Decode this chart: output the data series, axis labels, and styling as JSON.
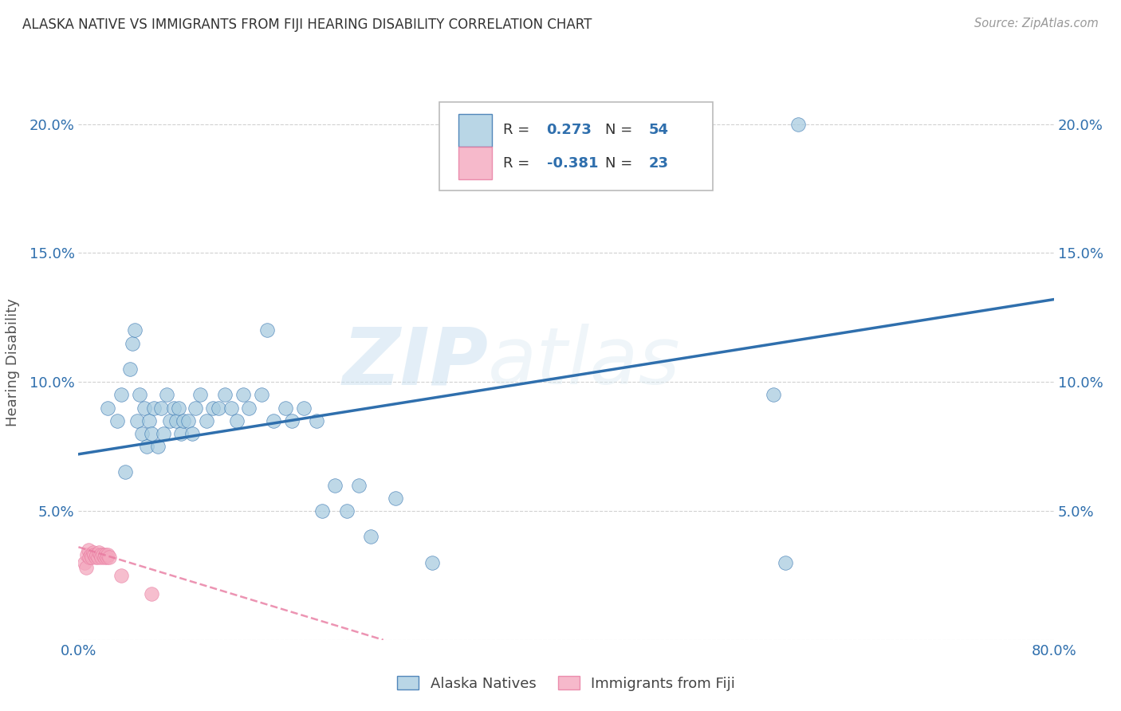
{
  "title": "ALASKA NATIVE VS IMMIGRANTS FROM FIJI HEARING DISABILITY CORRELATION CHART",
  "source": "Source: ZipAtlas.com",
  "ylabel": "Hearing Disability",
  "xmin": 0.0,
  "xmax": 0.8,
  "ymin": 0.0,
  "ymax": 0.215,
  "yticks": [
    0.0,
    0.05,
    0.1,
    0.15,
    0.2
  ],
  "ytick_labels_left": [
    "",
    "5.0%",
    "10.0%",
    "15.0%",
    "20.0%"
  ],
  "ytick_labels_right": [
    "",
    "5.0%",
    "10.0%",
    "15.0%",
    "20.0%"
  ],
  "xticks": [
    0.0,
    0.1,
    0.2,
    0.3,
    0.4,
    0.5,
    0.6,
    0.7,
    0.8
  ],
  "xtick_labels": [
    "0.0%",
    "",
    "",
    "",
    "",
    "",
    "",
    "",
    "80.0%"
  ],
  "legend_blue_label": "Alaska Natives",
  "legend_pink_label": "Immigrants from Fiji",
  "r_blue": "0.273",
  "n_blue": "54",
  "r_pink": "-0.381",
  "n_pink": "23",
  "blue_color": "#a8cce0",
  "pink_color": "#f4a8be",
  "trendline_blue_color": "#2f6fad",
  "trendline_pink_color": "#e87aa0",
  "watermark_zip": "ZIP",
  "watermark_atlas": "atlas",
  "alaska_native_x": [
    0.024,
    0.032,
    0.035,
    0.038,
    0.042,
    0.044,
    0.046,
    0.048,
    0.05,
    0.052,
    0.054,
    0.056,
    0.058,
    0.06,
    0.062,
    0.065,
    0.068,
    0.07,
    0.072,
    0.075,
    0.078,
    0.08,
    0.082,
    0.084,
    0.086,
    0.09,
    0.093,
    0.096,
    0.1,
    0.105,
    0.11,
    0.115,
    0.12,
    0.125,
    0.13,
    0.135,
    0.14,
    0.15,
    0.155,
    0.16,
    0.17,
    0.175,
    0.185,
    0.195,
    0.2,
    0.21,
    0.22,
    0.23,
    0.24,
    0.26,
    0.29,
    0.57,
    0.58,
    0.59
  ],
  "alaska_native_y": [
    0.09,
    0.085,
    0.095,
    0.065,
    0.105,
    0.115,
    0.12,
    0.085,
    0.095,
    0.08,
    0.09,
    0.075,
    0.085,
    0.08,
    0.09,
    0.075,
    0.09,
    0.08,
    0.095,
    0.085,
    0.09,
    0.085,
    0.09,
    0.08,
    0.085,
    0.085,
    0.08,
    0.09,
    0.095,
    0.085,
    0.09,
    0.09,
    0.095,
    0.09,
    0.085,
    0.095,
    0.09,
    0.095,
    0.12,
    0.085,
    0.09,
    0.085,
    0.09,
    0.085,
    0.05,
    0.06,
    0.05,
    0.06,
    0.04,
    0.055,
    0.03,
    0.095,
    0.03,
    0.2
  ],
  "fiji_x": [
    0.005,
    0.006,
    0.007,
    0.008,
    0.009,
    0.01,
    0.011,
    0.012,
    0.013,
    0.014,
    0.015,
    0.016,
    0.017,
    0.018,
    0.019,
    0.02,
    0.021,
    0.022,
    0.023,
    0.024,
    0.025,
    0.035,
    0.06
  ],
  "fiji_y": [
    0.03,
    0.028,
    0.033,
    0.035,
    0.032,
    0.033,
    0.032,
    0.034,
    0.033,
    0.032,
    0.033,
    0.032,
    0.034,
    0.033,
    0.032,
    0.033,
    0.032,
    0.033,
    0.032,
    0.033,
    0.032,
    0.025,
    0.018
  ],
  "blue_trendline_x": [
    0.0,
    0.8
  ],
  "blue_trendline_y": [
    0.072,
    0.132
  ],
  "pink_trendline_x": [
    0.0,
    0.25
  ],
  "pink_trendline_y": [
    0.036,
    0.0
  ]
}
